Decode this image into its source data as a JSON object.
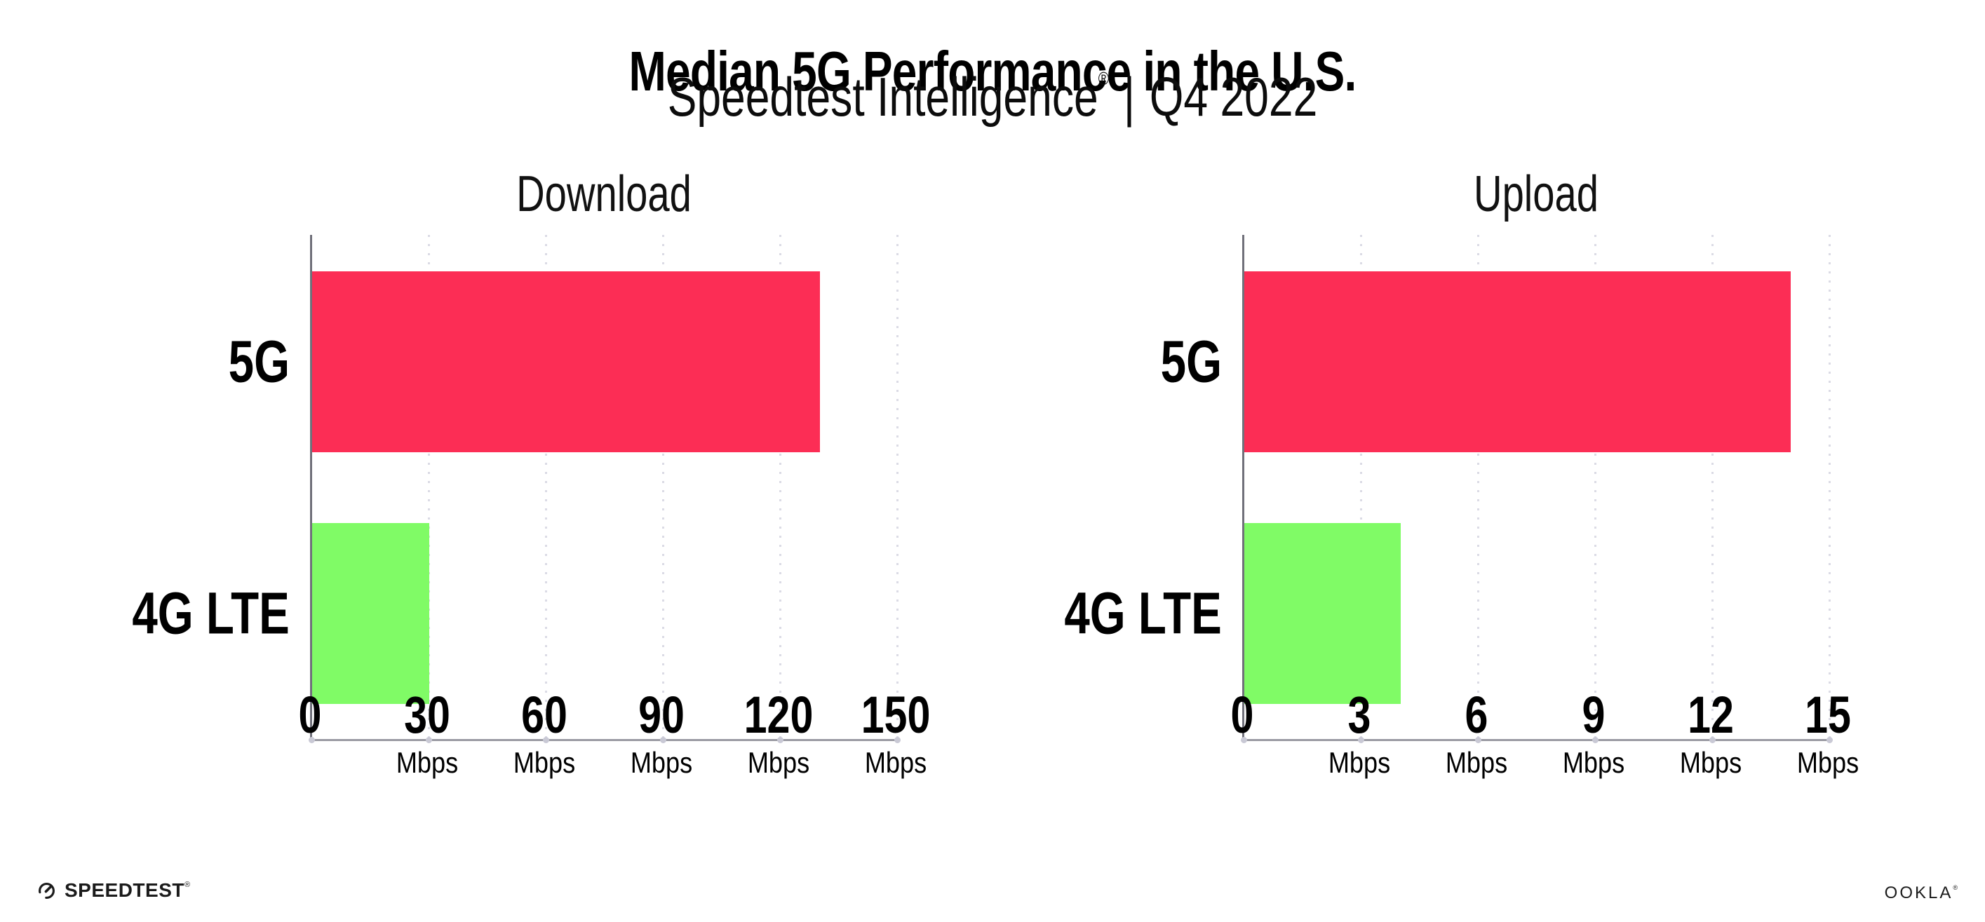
{
  "header": {
    "title": "Median 5G Performance in the U.S.",
    "subtitle_brand": "Speedtest Intelligence",
    "subtitle_reg": "®",
    "subtitle_sep": "|",
    "subtitle_period": "Q4 2022"
  },
  "footer": {
    "speedtest_label": "SPEEDTEST",
    "speedtest_reg": "®",
    "ookla_label": "OOKLA",
    "ookla_reg": "®"
  },
  "colors": {
    "bar_5g": "#FC2D55",
    "bar_4g": "#80FB66",
    "gridline": "#DBDBE5",
    "axis_left": "#70707A",
    "axis_bottom": "#9B9BA3",
    "text": "#000000"
  },
  "icons": {
    "speedtest_gauge": "speedometer-gauge-icon"
  },
  "chart_data": [
    {
      "type": "bar",
      "orientation": "horizontal",
      "title": "Download",
      "categories": [
        "5G",
        "4G LTE"
      ],
      "values": [
        130,
        30
      ],
      "unit": "Mbps",
      "xlim": [
        0,
        150
      ],
      "xticks": [
        0,
        30,
        60,
        90,
        120,
        150
      ],
      "tick_unit": "Mbps",
      "bar_colors": [
        "#FC2D55",
        "#80FB66"
      ],
      "grid": "vertical-dotted",
      "legend": "none"
    },
    {
      "type": "bar",
      "orientation": "horizontal",
      "title": "Upload",
      "categories": [
        "5G",
        "4G LTE"
      ],
      "values": [
        14,
        4
      ],
      "unit": "Mbps",
      "xlim": [
        0,
        15
      ],
      "xticks": [
        0,
        3,
        6,
        9,
        12,
        15
      ],
      "tick_unit": "Mbps",
      "bar_colors": [
        "#FC2D55",
        "#80FB66"
      ],
      "grid": "vertical-dotted",
      "legend": "none"
    }
  ]
}
